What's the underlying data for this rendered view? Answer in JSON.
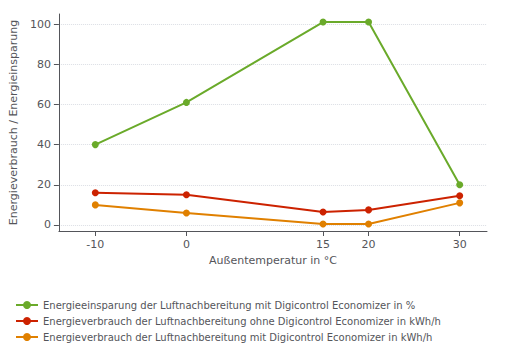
{
  "chart_data": {
    "type": "line",
    "x": [
      -10,
      0,
      15,
      20,
      30
    ],
    "series": [
      {
        "name": "Energieeinsparung der Luftnachbereitung mit Digicontrol Economizer in %",
        "color": "#6aaa2a",
        "values": [
          40,
          61,
          101,
          101,
          20
        ]
      },
      {
        "name": "Energieverbrauch der Luftnachbereitung ohne Digicontrol Economizer in kWh/h",
        "color": "#cc2200",
        "values": [
          16,
          15,
          6.5,
          7.5,
          14.5
        ]
      },
      {
        "name": "Energieverbrauch der Luftnachbereitung mit Digicontrol Economizer in kWh/h",
        "color": "#e08000",
        "values": [
          10,
          6,
          0.5,
          0.5,
          11
        ]
      }
    ],
    "xlabel": "Außentemperatur in °C",
    "ylabel": "Energieverbrauch / Energieinsparung",
    "xlim": [
      -14,
      33
    ],
    "ylim": [
      -3,
      105
    ],
    "xticks": [
      -10,
      0,
      15,
      20,
      30
    ],
    "yticks": [
      0,
      20,
      40,
      60,
      80,
      100
    ],
    "grid": "y",
    "legend": "lower left",
    "marker": "circle"
  }
}
